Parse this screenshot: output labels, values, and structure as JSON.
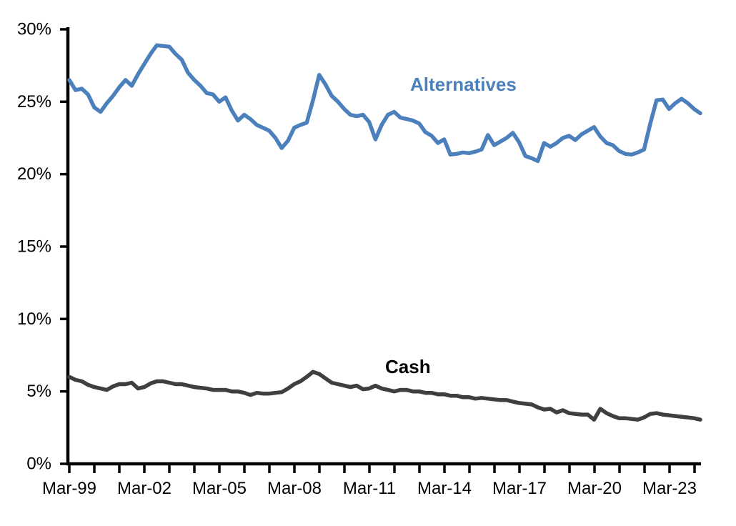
{
  "chart_data": {
    "type": "line",
    "title": "",
    "frequency": "quarterly",
    "x_start": "Mar-99",
    "x_end": "Jun-24",
    "x_tick_labels": [
      "Mar-99",
      "Mar-02",
      "Mar-05",
      "Mar-08",
      "Mar-11",
      "Mar-14",
      "Mar-17",
      "Mar-20",
      "Mar-23"
    ],
    "x_minor_ticks": "yearly",
    "y_tick_labels": [
      "0%",
      "5%",
      "10%",
      "15%",
      "20%",
      "25%",
      "30%"
    ],
    "ylim": [
      0,
      30
    ],
    "grid": "off",
    "legend": "inline-labels",
    "axis_color": "#000000",
    "series": [
      {
        "name": "Alternatives",
        "color": "#4C80BC",
        "values": [
          26.5,
          25.8,
          25.9,
          25.5,
          24.6,
          24.3,
          24.9,
          25.4,
          26.0,
          26.5,
          26.1,
          26.9,
          27.6,
          28.3,
          28.9,
          28.85,
          28.8,
          28.3,
          27.9,
          27.0,
          26.5,
          26.1,
          25.6,
          25.5,
          25.0,
          25.3,
          24.4,
          23.7,
          24.1,
          23.8,
          23.4,
          23.2,
          23.0,
          22.5,
          21.8,
          22.3,
          23.2,
          23.4,
          23.55,
          25.1,
          26.85,
          26.2,
          25.4,
          25.0,
          24.5,
          24.1,
          24.0,
          24.1,
          23.6,
          22.4,
          23.4,
          24.1,
          24.3,
          23.9,
          23.8,
          23.7,
          23.5,
          22.9,
          22.65,
          22.15,
          22.4,
          21.35,
          21.4,
          21.5,
          21.45,
          21.55,
          21.7,
          22.7,
          22.0,
          22.25,
          22.5,
          22.85,
          22.2,
          21.25,
          21.1,
          20.9,
          22.15,
          21.9,
          22.15,
          22.5,
          22.65,
          22.35,
          22.75,
          23.0,
          23.25,
          22.6,
          22.15,
          22.0,
          21.6,
          21.4,
          21.35,
          21.5,
          21.7,
          23.5,
          25.1,
          25.15,
          24.5,
          24.9,
          25.2,
          24.9,
          24.5,
          24.2
        ]
      },
      {
        "name": "Cash",
        "color": "#3F3F3F",
        "values": [
          6.0,
          5.8,
          5.7,
          5.45,
          5.3,
          5.2,
          5.1,
          5.35,
          5.5,
          5.5,
          5.6,
          5.2,
          5.3,
          5.55,
          5.7,
          5.7,
          5.6,
          5.5,
          5.5,
          5.4,
          5.3,
          5.25,
          5.2,
          5.1,
          5.1,
          5.1,
          5.0,
          5.0,
          4.9,
          4.75,
          4.9,
          4.85,
          4.85,
          4.9,
          4.95,
          5.2,
          5.5,
          5.7,
          6.0,
          6.35,
          6.2,
          5.9,
          5.6,
          5.5,
          5.4,
          5.3,
          5.4,
          5.15,
          5.2,
          5.4,
          5.2,
          5.1,
          5.0,
          5.1,
          5.1,
          5.0,
          5.0,
          4.9,
          4.9,
          4.8,
          4.8,
          4.7,
          4.7,
          4.6,
          4.6,
          4.5,
          4.55,
          4.5,
          4.45,
          4.4,
          4.4,
          4.3,
          4.2,
          4.15,
          4.1,
          3.9,
          3.75,
          3.8,
          3.55,
          3.7,
          3.5,
          3.45,
          3.4,
          3.4,
          3.05,
          3.8,
          3.5,
          3.3,
          3.15,
          3.15,
          3.1,
          3.05,
          3.2,
          3.45,
          3.5,
          3.4,
          3.35,
          3.3,
          3.25,
          3.2,
          3.15,
          3.05
        ]
      }
    ]
  },
  "labels": {
    "alternatives": "Alternatives",
    "cash": "Cash"
  }
}
